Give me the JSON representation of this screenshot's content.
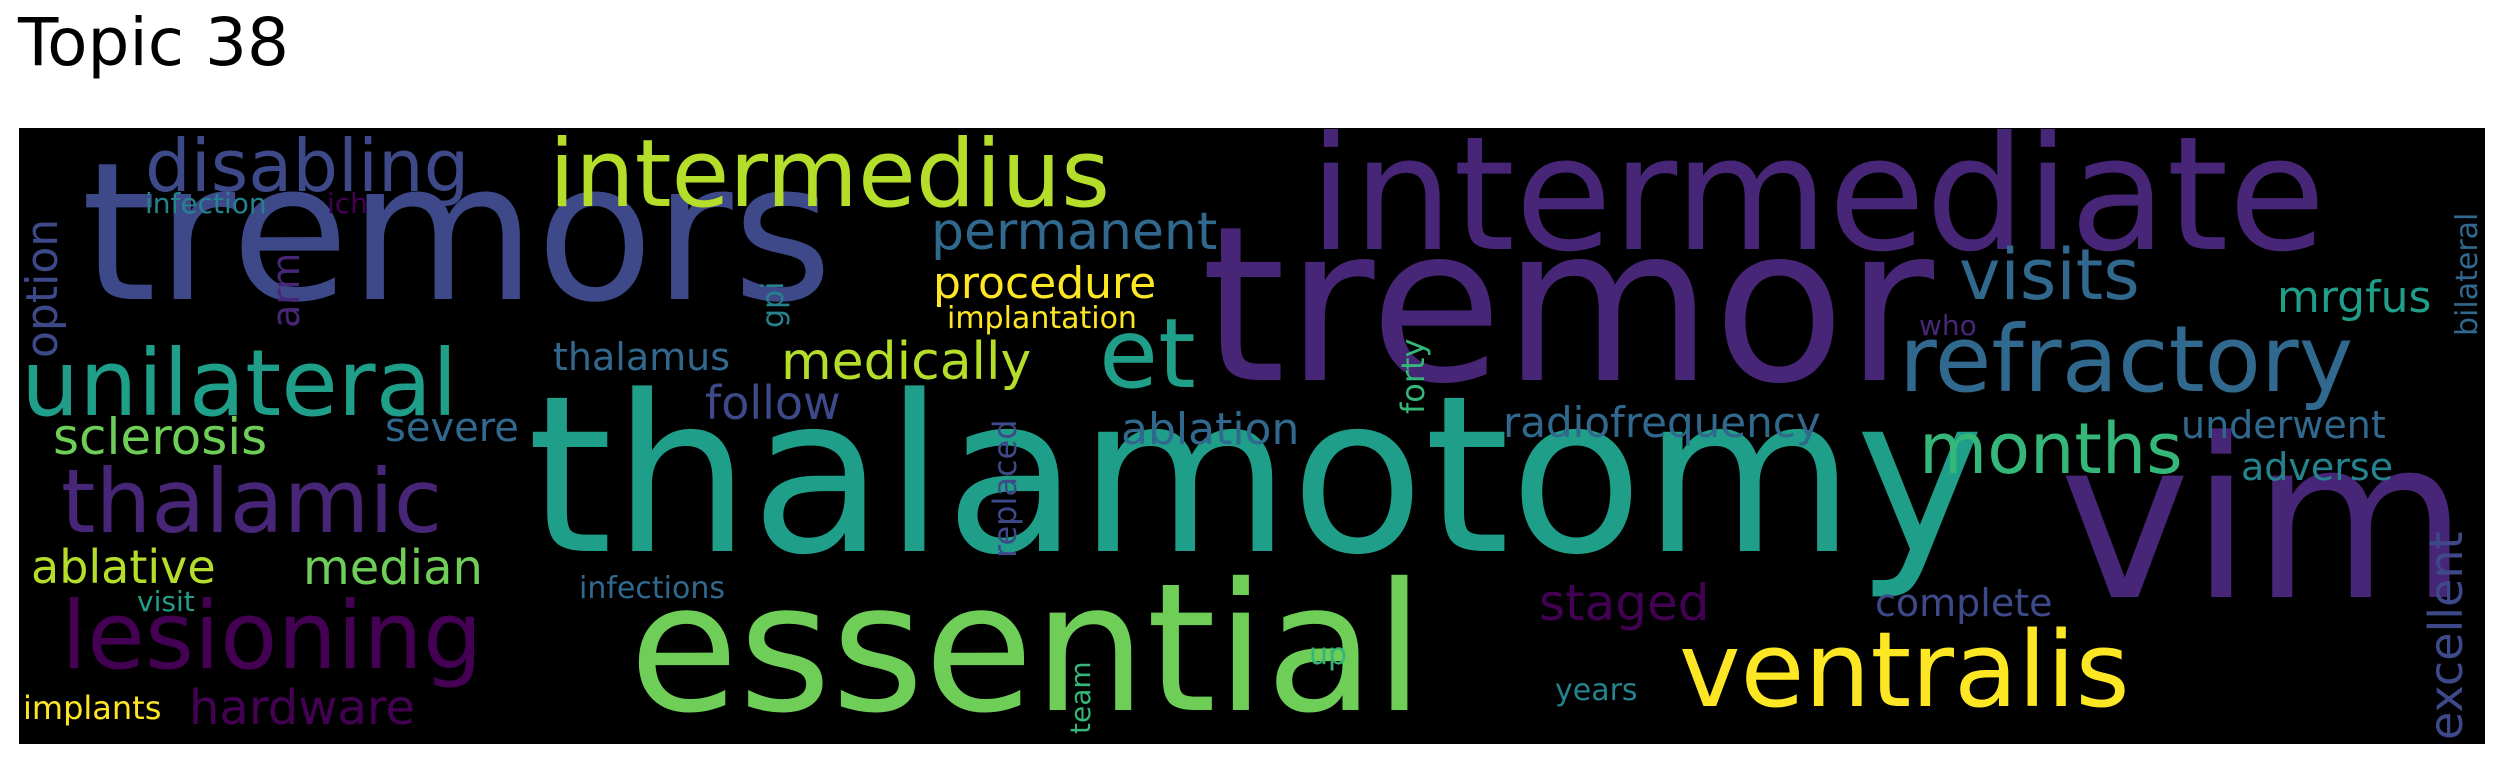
{
  "title": "Topic 38",
  "words": {
    "tremors": "tremors",
    "tremor": "tremor",
    "intermediate": "intermediate",
    "thalamotomy": "thalamotomy",
    "vim": "vim",
    "essential": "essential",
    "intermedius": "intermedius",
    "disabling": "disabling",
    "unilateral": "unilateral",
    "refractory": "refractory",
    "ventralis": "ventralis",
    "lesioning": "lesioning",
    "thalamic": "thalamic",
    "et": "et",
    "visits": "visits",
    "months": "months",
    "permanent": "permanent",
    "procedure": "procedure",
    "medically": "medically",
    "mrgfus": "mrgfus",
    "sclerosis": "sclerosis",
    "severe": "severe",
    "follow": "follow",
    "ablation": "ablation",
    "radiofrequency": "radiofrequency",
    "underwent": "underwent",
    "adverse": "adverse",
    "ablative": "ablative",
    "median": "median",
    "staged": "staged",
    "complete": "complete",
    "hardware": "hardware",
    "implants": "implants",
    "visit": "visit",
    "infections": "infections",
    "infection": "infection",
    "ich": "ich",
    "implantation": "implantation",
    "thalamus": "thalamus",
    "who": "who",
    "years": "years",
    "up": "up",
    "option": "option",
    "arm": "arm",
    "gpi": "gpi",
    "forty": "forty",
    "replaced": "replaced",
    "team": "team",
    "excellent": "excellent",
    "bilateral": "bilateral"
  },
  "colors": {
    "dark_purple": "#440154",
    "purple": "#482677",
    "indigo": "#3e4989",
    "blue": "#31688e",
    "teal_blue": "#26828e",
    "teal": "#1f9e89",
    "green": "#35b779",
    "light_green": "#6ece58",
    "lime": "#b5de2b",
    "yellow": "#fde725"
  }
}
